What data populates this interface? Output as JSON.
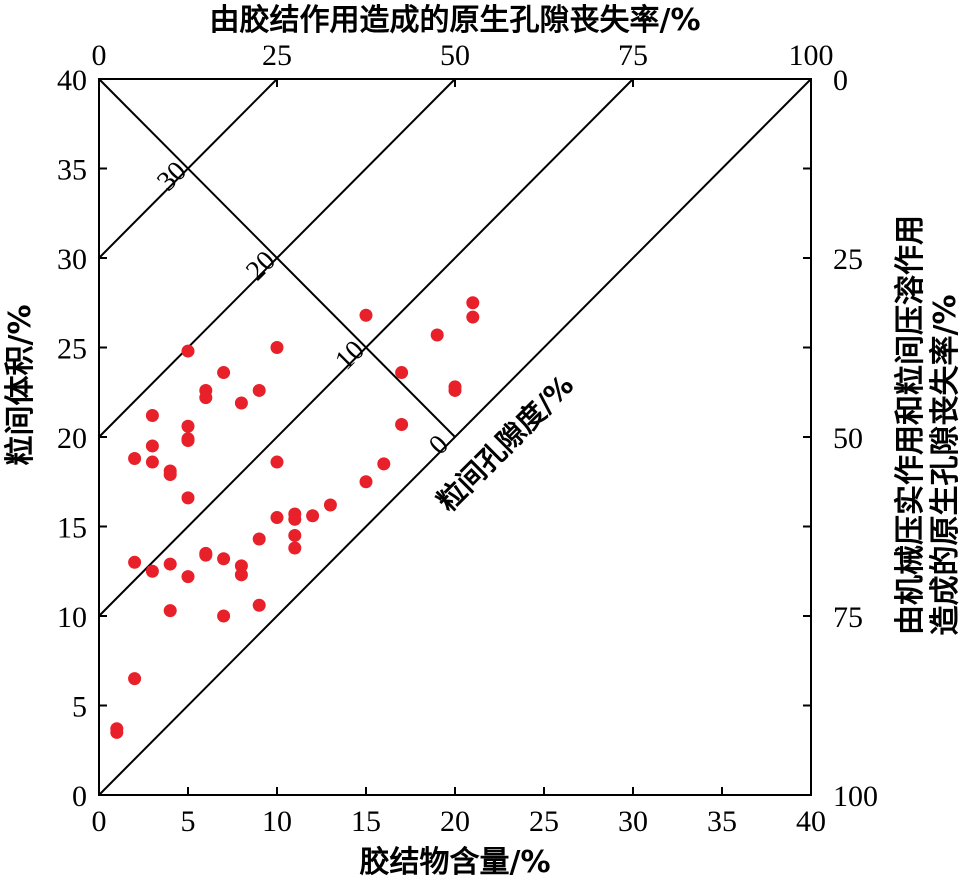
{
  "chart_data": {
    "type": "scatter",
    "top_title": "由胶结作用造成的原生孔隙丧失率/%",
    "xlabel": "胶结物含量/%",
    "ylabel": "粒间体积/%",
    "right_title_line1": "由机械压实作用和粒间压溶作用",
    "right_title_line2": "造成的原生孔隙丧失率/%",
    "diagonal_label": "粒间孔隙度/%",
    "xlim": [
      0,
      40
    ],
    "ylim": [
      0,
      40
    ],
    "x_ticks": [
      "0",
      "5",
      "10",
      "15",
      "20",
      "25",
      "30",
      "35",
      "40"
    ],
    "y_ticks": [
      "0",
      "5",
      "10",
      "15",
      "20",
      "25",
      "30",
      "35",
      "40"
    ],
    "top_ticks": [
      "0",
      "25",
      "50",
      "75",
      "100"
    ],
    "right_ticks": [
      "0",
      "25",
      "50",
      "75",
      "100"
    ],
    "porosity_isolines": [
      {
        "label": "30",
        "porosity": 30
      },
      {
        "label": "20",
        "porosity": 20
      },
      {
        "label": "10",
        "porosity": 10
      },
      {
        "label": "0",
        "porosity": 0
      }
    ],
    "point_color": "#e8202a",
    "points": [
      {
        "x": 1,
        "y": 3.7
      },
      {
        "x": 1,
        "y": 3.5
      },
      {
        "x": 2,
        "y": 6.5
      },
      {
        "x": 2,
        "y": 13
      },
      {
        "x": 2,
        "y": 18.8
      },
      {
        "x": 3,
        "y": 21.2
      },
      {
        "x": 3,
        "y": 19.5
      },
      {
        "x": 3,
        "y": 18.6
      },
      {
        "x": 3,
        "y": 12.5
      },
      {
        "x": 4,
        "y": 18.1
      },
      {
        "x": 4,
        "y": 17.9
      },
      {
        "x": 4,
        "y": 12.9
      },
      {
        "x": 4,
        "y": 10.3
      },
      {
        "x": 5,
        "y": 24.8
      },
      {
        "x": 5,
        "y": 20.6
      },
      {
        "x": 5,
        "y": 19.9
      },
      {
        "x": 5,
        "y": 19.8
      },
      {
        "x": 5,
        "y": 16.6
      },
      {
        "x": 5,
        "y": 12.2
      },
      {
        "x": 6,
        "y": 22.6
      },
      {
        "x": 6,
        "y": 22.2
      },
      {
        "x": 6,
        "y": 13.5
      },
      {
        "x": 6,
        "y": 13.4
      },
      {
        "x": 7,
        "y": 23.6
      },
      {
        "x": 7,
        "y": 13.2
      },
      {
        "x": 7,
        "y": 10
      },
      {
        "x": 8,
        "y": 21.9
      },
      {
        "x": 8,
        "y": 12.8
      },
      {
        "x": 8,
        "y": 12.3
      },
      {
        "x": 9,
        "y": 22.6
      },
      {
        "x": 9,
        "y": 14.3
      },
      {
        "x": 9,
        "y": 10.6
      },
      {
        "x": 10,
        "y": 25
      },
      {
        "x": 10,
        "y": 18.6
      },
      {
        "x": 10,
        "y": 15.5
      },
      {
        "x": 11,
        "y": 15.7
      },
      {
        "x": 11,
        "y": 15.4
      },
      {
        "x": 11,
        "y": 14.5
      },
      {
        "x": 11,
        "y": 13.8
      },
      {
        "x": 12,
        "y": 15.6
      },
      {
        "x": 13,
        "y": 16.2
      },
      {
        "x": 15,
        "y": 26.8
      },
      {
        "x": 15,
        "y": 17.5
      },
      {
        "x": 16,
        "y": 18.5
      },
      {
        "x": 17,
        "y": 23.6
      },
      {
        "x": 17,
        "y": 20.7
      },
      {
        "x": 19,
        "y": 25.7
      },
      {
        "x": 20,
        "y": 22.8
      },
      {
        "x": 20,
        "y": 22.6
      },
      {
        "x": 21,
        "y": 27.5
      },
      {
        "x": 21,
        "y": 26.7
      }
    ]
  }
}
